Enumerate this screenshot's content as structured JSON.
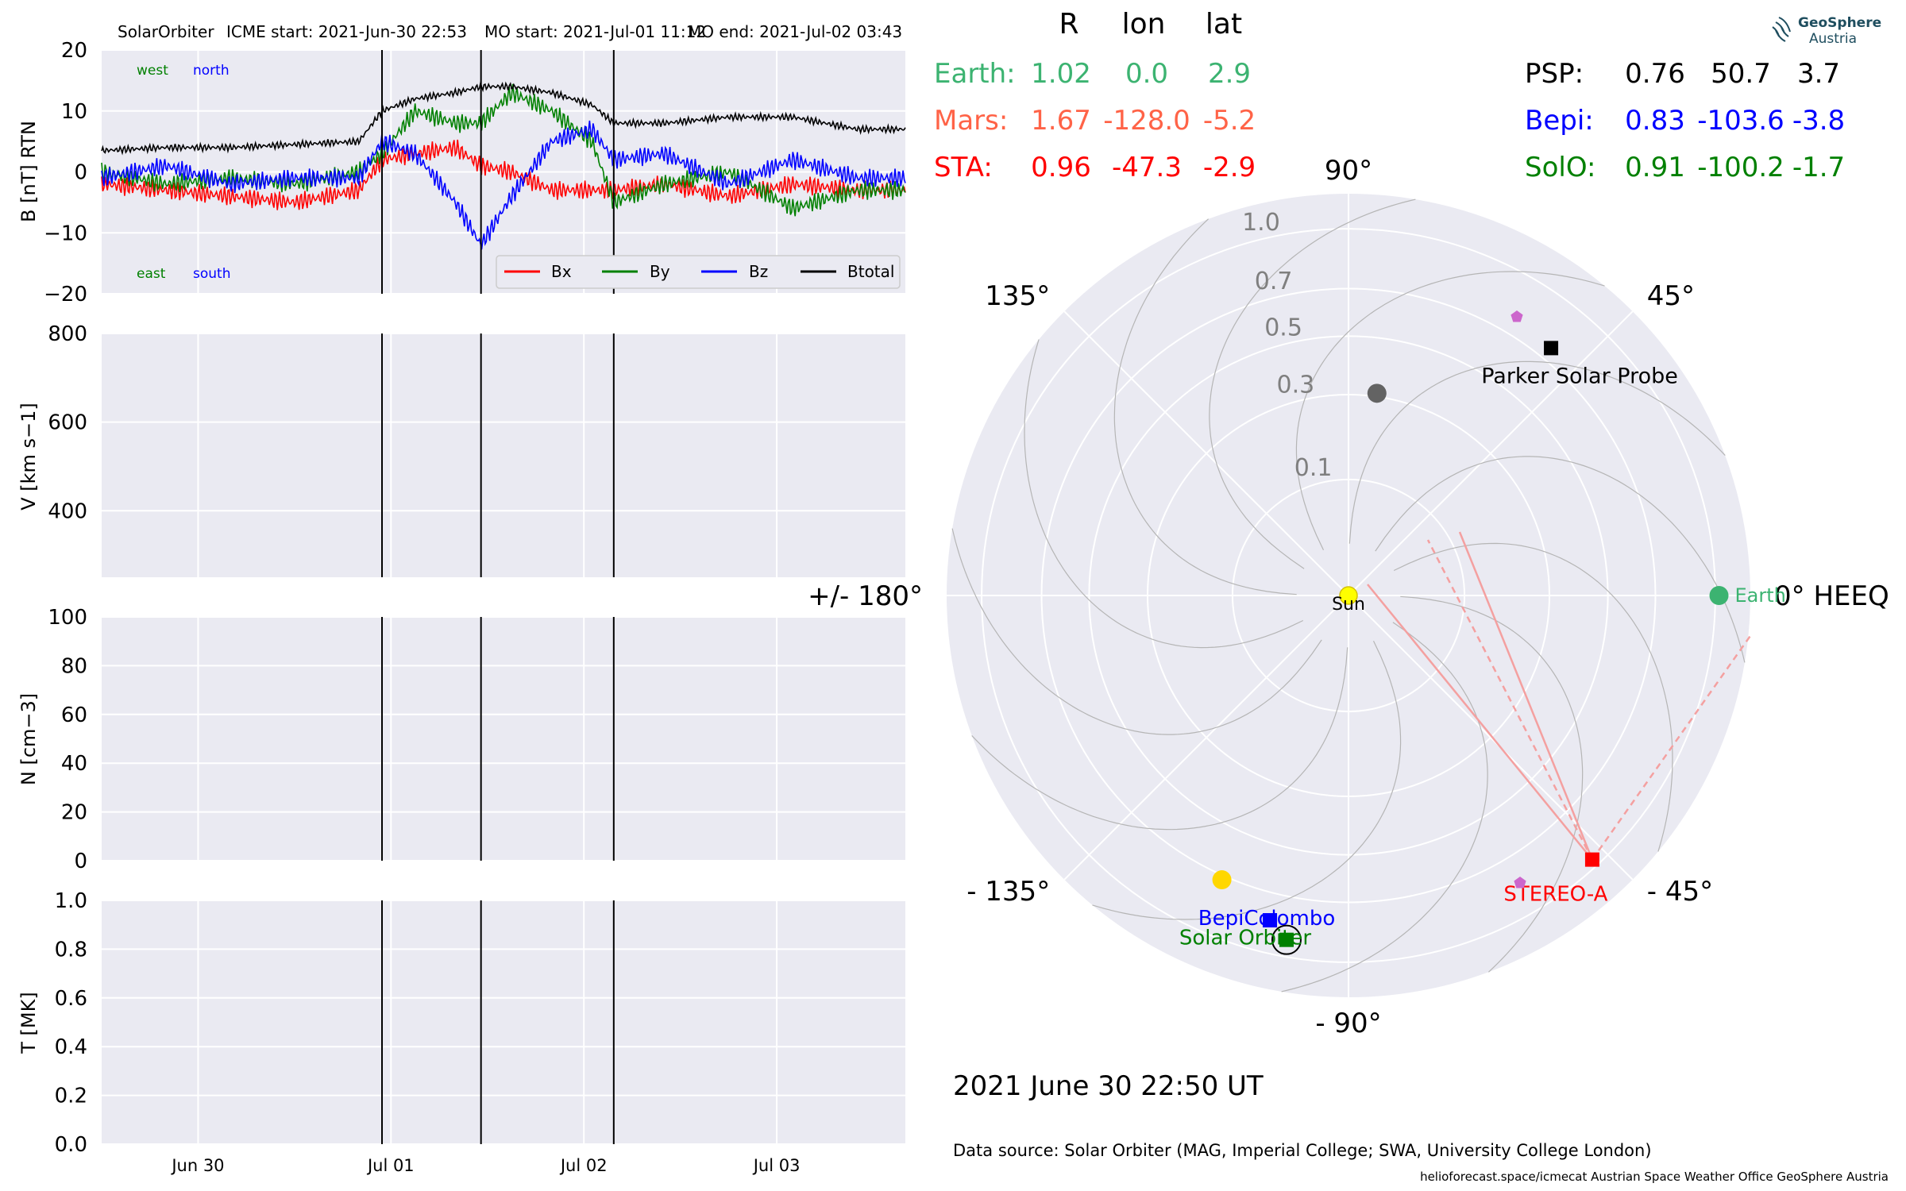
{
  "header": {
    "spacecraft": "SolarOrbiter",
    "icme_start": "ICME start: 2021-Jun-30 22:53",
    "mo_start": "MO start: 2021-Jul-01 11:12",
    "mo_end": "MO end: 2021-Jul-02 03:43"
  },
  "logo": {
    "line1": "GeoSphere",
    "line2": "Austria"
  },
  "colors": {
    "panel_bg": "#eaeaf2",
    "grid": "#ffffff",
    "bx": "#ff0000",
    "by": "#008000",
    "bz": "#0000ff",
    "btotal": "#000000",
    "earth": "#3cb371",
    "mars": "#ff6347",
    "sta": "#ff0000",
    "psp": "#000000",
    "bepi": "#0000ff",
    "solo": "#008000",
    "sun": "#ffff00",
    "ms": "#cc66cc"
  },
  "position_table": {
    "headers": [
      "R",
      "lon",
      "lat"
    ],
    "rows_left": [
      {
        "name": "Earth:",
        "r": "1.02",
        "lon": "0.0",
        "lat": "2.9",
        "color": "#3cb371"
      },
      {
        "name": "Mars:",
        "r": "1.67",
        "lon": "-128.0",
        "lat": "-5.2",
        "color": "#ff6347"
      },
      {
        "name": "STA:",
        "r": "0.96",
        "lon": "-47.3",
        "lat": "-2.9",
        "color": "#ff0000"
      }
    ],
    "rows_right": [
      {
        "name": "PSP:",
        "r": "0.76",
        "lon": "50.7",
        "lat": "3.7",
        "color": "#000000"
      },
      {
        "name": "Bepi:",
        "r": "0.83",
        "lon": "-103.6",
        "lat": "-3.8",
        "color": "#0000ff"
      },
      {
        "name": "SolO:",
        "r": "0.91",
        "lon": "-100.2",
        "lat": "-1.7",
        "color": "#008000"
      }
    ]
  },
  "polar": {
    "angle_labels": [
      "90°",
      "45°",
      "0° HEEQ",
      "- 45°",
      "- 90°",
      "- 135°",
      "+/- 180°",
      "135°"
    ],
    "radial_labels": [
      "0.1",
      "0.3",
      "0.5",
      "0.7",
      "1.0"
    ],
    "timestamp": "2021 June 30  22:50 UT",
    "bodies": [
      {
        "name": "Sun",
        "label": "Sun",
        "r": 0,
        "lon": 0
      },
      {
        "name": "Earth",
        "label": "Earth",
        "r": 1.02,
        "lon": 0.0
      },
      {
        "name": "PSP",
        "label": "Parker Solar Probe",
        "r": 0.76,
        "lon": 50.7
      },
      {
        "name": "STA",
        "label": "STEREO-A",
        "r": 0.96,
        "lon": -47.3
      },
      {
        "name": "Bepi",
        "label": "BepiColombo",
        "r": 0.83,
        "lon": -103.6
      },
      {
        "name": "SolO",
        "label": "Solar Orbiter",
        "r": 0.91,
        "lon": -100.2
      },
      {
        "name": "Mercury",
        "label": "",
        "r": 0.31,
        "lon": 82
      },
      {
        "name": "Venus",
        "label": "",
        "r": 0.72,
        "lon": -114
      }
    ]
  },
  "footer": {
    "data_source": "Data source: Solar Orbiter (MAG, Imperial College; SWA, University College London)",
    "credits": "helioforecast.space/icmecat   Austrian Space Weather Office   GeoSphere Austria"
  },
  "chart_data": [
    {
      "type": "line",
      "ylabel": "B [nT] RTN",
      "ylim": [
        -20,
        20
      ],
      "yticks": [
        20,
        10,
        0,
        -10,
        -20
      ],
      "ytick_labels": [
        "20",
        "10",
        "0",
        "−10",
        "−20"
      ],
      "xlim_days": "2021-06-29 to 2021-07-03",
      "xtick_labels": [
        "Jun 30",
        "Jul 01",
        "Jul 02",
        "Jul 03"
      ],
      "corner_labels": [
        "west",
        "north",
        "east",
        "south"
      ],
      "legend": [
        "Bx",
        "By",
        "Bz",
        "Btotal"
      ],
      "legend_position": "lower-right",
      "vlines": [
        "2021-06-30 22:53",
        "2021-07-01 11:12",
        "2021-07-02 03:43"
      ],
      "series": [
        {
          "name": "Bx",
          "x": [
            "06-29 12:00",
            "06-29 20:00",
            "06-30 04:00",
            "06-30 12:00",
            "06-30 20:00",
            "06-30 22:53",
            "07-01 03:00",
            "07-01 08:00",
            "07-01 11:12",
            "07-01 15:00",
            "07-01 20:00",
            "07-02 01:00",
            "07-02 03:43",
            "07-02 10:00",
            "07-02 18:00",
            "07-03 02:00",
            "07-03 10:00"
          ],
          "values": [
            -2,
            -3,
            -4,
            -5,
            -3,
            2,
            3,
            4,
            1,
            0,
            -3,
            -3,
            -3,
            -2,
            -4,
            -2,
            -3
          ]
        },
        {
          "name": "By",
          "x": [
            "06-29 12:00",
            "06-29 20:00",
            "06-30 04:00",
            "06-30 12:00",
            "06-30 20:00",
            "06-30 22:53",
            "07-01 03:00",
            "07-01 08:00",
            "07-01 11:12",
            "07-01 15:00",
            "07-01 20:00",
            "07-02 01:00",
            "07-02 03:43",
            "07-02 10:00",
            "07-02 18:00",
            "07-03 02:00",
            "07-03 10:00"
          ],
          "values": [
            0,
            -2,
            -1,
            -2,
            0,
            3,
            10,
            8,
            8,
            13,
            10,
            5,
            -5,
            -2,
            0,
            -6,
            -3
          ]
        },
        {
          "name": "Bz",
          "x": [
            "06-29 12:00",
            "06-29 20:00",
            "06-30 04:00",
            "06-30 12:00",
            "06-30 20:00",
            "06-30 22:53",
            "07-01 03:00",
            "07-01 08:00",
            "07-01 11:12",
            "07-01 15:00",
            "07-01 20:00",
            "07-02 01:00",
            "07-02 03:43",
            "07-02 10:00",
            "07-02 18:00",
            "07-03 02:00",
            "07-03 10:00"
          ],
          "values": [
            -1,
            1,
            -2,
            -1,
            -1,
            5,
            3,
            -5,
            -12,
            -4,
            5,
            7,
            2,
            3,
            -2,
            2,
            -1
          ]
        },
        {
          "name": "Btotal",
          "x": [
            "06-29 12:00",
            "06-29 20:00",
            "06-30 04:00",
            "06-30 12:00",
            "06-30 20:00",
            "06-30 22:53",
            "07-01 03:00",
            "07-01 08:00",
            "07-01 11:12",
            "07-01 15:00",
            "07-01 20:00",
            "07-02 01:00",
            "07-02 03:43",
            "07-02 10:00",
            "07-02 18:00",
            "07-03 02:00",
            "07-03 10:00"
          ],
          "values": [
            3.5,
            4,
            4,
            4.5,
            5,
            10,
            12,
            13,
            14,
            14,
            13,
            11,
            8,
            8,
            9,
            9,
            7
          ]
        }
      ]
    },
    {
      "type": "line",
      "ylabel": "V [km s−1]",
      "ylim": [
        250,
        800
      ],
      "yticks": [
        800,
        600,
        400
      ],
      "ytick_labels": [
        "800",
        "600",
        "400"
      ],
      "series": []
    },
    {
      "type": "line",
      "ylabel": "N [cm−3]",
      "ylim": [
        0,
        100
      ],
      "yticks": [
        100,
        80,
        60,
        40,
        20,
        0
      ],
      "ytick_labels": [
        "100",
        "80",
        "60",
        "40",
        "20",
        "0"
      ],
      "series": []
    },
    {
      "type": "line",
      "ylabel": "T [MK]",
      "ylim": [
        0,
        1
      ],
      "yticks": [
        1.0,
        0.8,
        0.6,
        0.4,
        0.2,
        0.0
      ],
      "ytick_labels": [
        "1.0",
        "0.8",
        "0.6",
        "0.4",
        "0.2",
        "0.0"
      ],
      "series": []
    }
  ]
}
